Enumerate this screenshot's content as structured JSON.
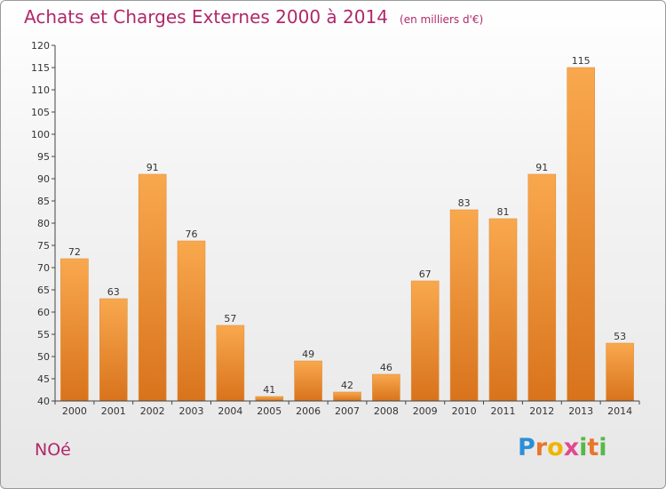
{
  "header": {
    "title": "Achats et Charges Externes 2000 à 2014",
    "subtitle": "(en milliers d'€)"
  },
  "footer": {
    "commune": "NOé",
    "logo_letters": [
      "P",
      "r",
      "o",
      "x",
      "i",
      "t",
      "i"
    ],
    "logo_colors": [
      "#2b8fd6",
      "#e8762b",
      "#f0b400",
      "#e04a8c",
      "#57b847",
      "#e8762b",
      "#57b847"
    ]
  },
  "colors": {
    "bar_top": "#f9a84e",
    "bar_bottom": "#d8731c",
    "axis": "#444444",
    "grid": "#dddddd",
    "text": "#333333"
  },
  "chart_data": {
    "type": "bar",
    "title": "Achats et Charges Externes 2000 à 2014",
    "subtitle": "(en milliers d'€)",
    "categories": [
      "2000",
      "2001",
      "2002",
      "2003",
      "2004",
      "2005",
      "2006",
      "2007",
      "2008",
      "2009",
      "2010",
      "2011",
      "2012",
      "2013",
      "2014"
    ],
    "values": [
      72,
      63,
      91,
      76,
      57,
      41,
      49,
      42,
      46,
      67,
      83,
      81,
      91,
      115,
      53
    ],
    "data_labels": [
      "72",
      "63",
      "91",
      "76",
      "57",
      "41",
      "49",
      "42",
      "46",
      "67",
      "83",
      "81",
      "91",
      "115",
      "53"
    ],
    "ylim": [
      40,
      120
    ],
    "yticks": [
      40,
      45,
      50,
      55,
      60,
      65,
      70,
      75,
      80,
      85,
      90,
      95,
      100,
      105,
      110,
      115,
      120
    ],
    "xlabel": "",
    "ylabel": "",
    "grid": false,
    "legend": "none"
  }
}
